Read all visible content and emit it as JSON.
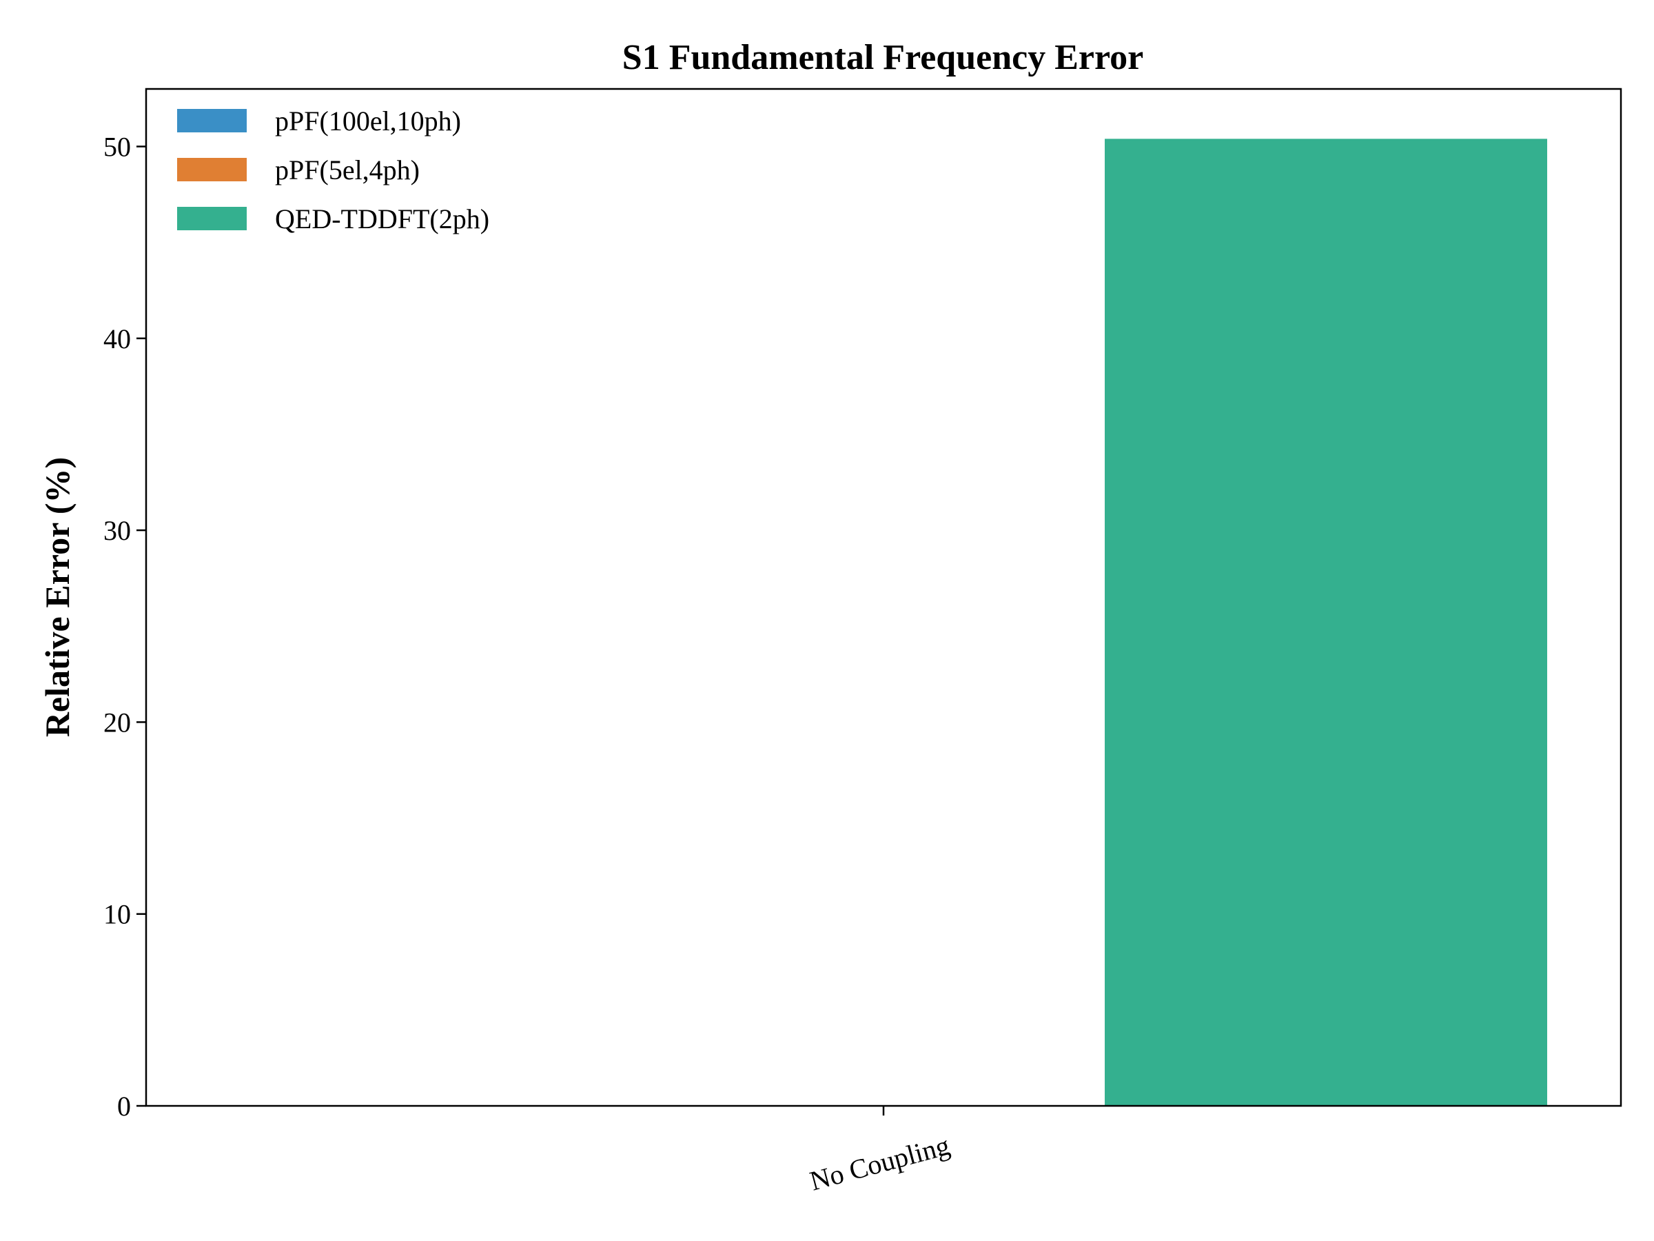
{
  "chart_data": {
    "type": "bar",
    "title": "S1 Fundamental Frequency Error",
    "xlabel": "",
    "ylabel": "Relative Error (%)",
    "categories": [
      "No Coupling"
    ],
    "series": [
      {
        "name": "pPF(100el,10ph)",
        "color": "#3a8fc6",
        "values": [
          0
        ]
      },
      {
        "name": "pPF(5el,4ph)",
        "color": "#e07f33",
        "values": [
          0
        ]
      },
      {
        "name": "QED-TDDFT(2ph)",
        "color": "#34b08f",
        "values": [
          50.4
        ]
      }
    ],
    "ylim": [
      0,
      53
    ],
    "yticks": [
      0,
      10,
      20,
      30,
      40,
      50
    ],
    "grid": false,
    "legend": "top-left"
  }
}
